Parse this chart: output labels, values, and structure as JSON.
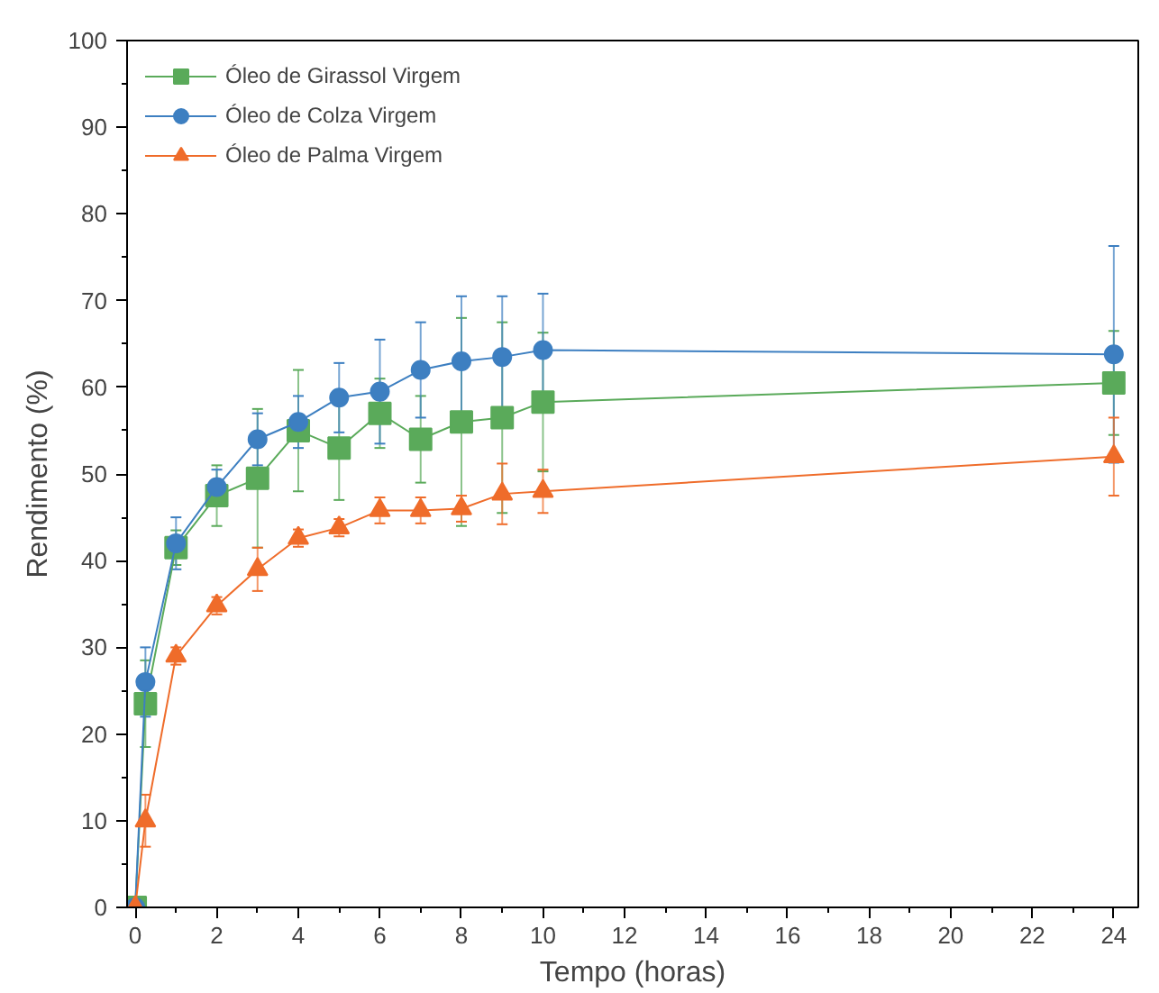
{
  "chart_data": {
    "type": "line",
    "xlabel": "Tempo (horas)",
    "ylabel": "Rendimento (%)",
    "x": [
      0,
      0.25,
      1,
      2,
      3,
      4,
      5,
      6,
      7,
      8,
      9,
      10,
      24
    ],
    "xlim": [
      -0.2,
      24.6
    ],
    "ylim": [
      0,
      100
    ],
    "xticks": [
      0,
      2,
      4,
      6,
      8,
      10,
      12,
      14,
      16,
      18,
      20,
      22,
      24
    ],
    "yticks": [
      0,
      10,
      20,
      30,
      40,
      50,
      60,
      70,
      80,
      90,
      100
    ],
    "grid": false,
    "legend": "top left",
    "series": [
      {
        "name": "Óleo de Girassol Virgem",
        "color": "#5aaa5a",
        "marker": "square",
        "values": [
          0,
          23.5,
          41.5,
          47.5,
          49.5,
          55,
          53,
          57,
          54,
          56,
          56.5,
          58.3,
          60.5
        ],
        "errors": [
          null,
          5,
          2,
          3.5,
          8,
          7,
          6,
          4,
          5,
          12,
          11,
          8,
          6
        ]
      },
      {
        "name": "Óleo de Colza Virgem",
        "color": "#3d7fc1",
        "marker": "circle",
        "values": [
          0,
          26,
          42,
          48.5,
          54,
          56,
          58.8,
          59.5,
          62,
          63,
          63.5,
          64.3,
          63.8
        ],
        "errors": [
          null,
          4,
          3,
          2,
          3,
          3,
          4,
          6,
          5.5,
          7.5,
          7,
          6.5,
          12.5
        ]
      },
      {
        "name": "Óleo de Palma Virgem",
        "color": "#ef6c2a",
        "marker": "triangle",
        "values": [
          0,
          10,
          29,
          34.8,
          39,
          42.6,
          43.8,
          45.8,
          45.8,
          46,
          47.7,
          48,
          52
        ],
        "errors": [
          null,
          3,
          1,
          1,
          2.5,
          1,
          1,
          1.5,
          1.5,
          1.5,
          3.5,
          2.5,
          4.5
        ]
      }
    ]
  }
}
